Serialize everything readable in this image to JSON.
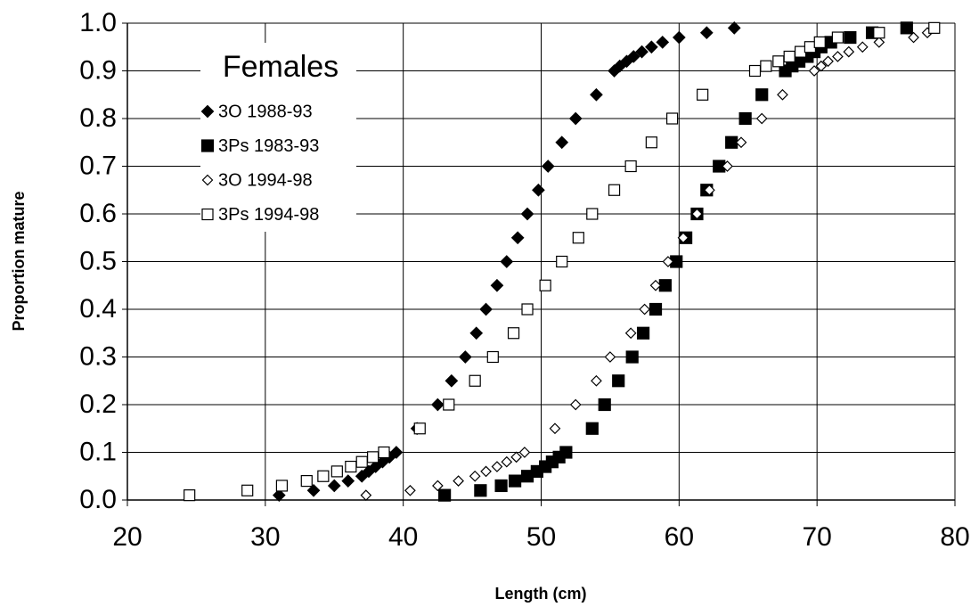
{
  "chart_data": {
    "type": "scatter",
    "xlabel": "Length (cm)",
    "ylabel": "Proportion mature",
    "legend_title": "Females",
    "legend": "upper left",
    "xlim": [
      20,
      80
    ],
    "xticks": [
      20,
      30,
      40,
      50,
      60,
      70,
      80
    ],
    "ylim": [
      0,
      1
    ],
    "yticks": [
      {
        "value": 0,
        "label": "0.0"
      },
      0.1,
      0.2,
      0.3,
      0.4,
      0.5,
      0.6,
      0.7,
      0.8,
      0.9,
      {
        "value": 1,
        "label": "1.0"
      }
    ],
    "grid": true,
    "series": [
      {
        "name": "3O 1988-93",
        "color": "#000000",
        "marker": "diamond",
        "filled": true,
        "x": [
          31,
          33.5,
          35,
          36,
          37,
          37.5,
          38,
          38.5,
          39,
          39.5,
          41,
          42.5,
          43.5,
          44.5,
          45.3,
          46,
          46.8,
          47.5,
          48.3,
          49,
          49.8,
          50.5,
          51.5,
          52.5,
          54,
          55.3,
          55.7,
          56.2,
          56.7,
          57.3,
          58,
          58.8,
          60,
          62,
          64
        ],
        "values": [
          0.01,
          0.02,
          0.03,
          0.04,
          0.05,
          0.06,
          0.07,
          0.08,
          0.09,
          0.1,
          0.15,
          0.2,
          0.25,
          0.3,
          0.35,
          0.4,
          0.45,
          0.5,
          0.55,
          0.6,
          0.65,
          0.7,
          0.75,
          0.8,
          0.85,
          0.9,
          0.91,
          0.92,
          0.93,
          0.94,
          0.95,
          0.96,
          0.97,
          0.98,
          0.99
        ]
      },
      {
        "name": "3Ps 1983-93",
        "color": "#000000",
        "marker": "square",
        "filled": true,
        "x": [
          43,
          45.6,
          47.1,
          48.1,
          49,
          49.7,
          50.3,
          50.8,
          51.3,
          51.8,
          53.7,
          54.6,
          55.6,
          56.6,
          57.4,
          58.3,
          59,
          59.8,
          60.5,
          61.3,
          62,
          62.9,
          63.8,
          64.8,
          66,
          67.7,
          68.2,
          68.7,
          69.3,
          69.8,
          70.3,
          71,
          72.4,
          74,
          76.5
        ],
        "values": [
          0.01,
          0.02,
          0.03,
          0.04,
          0.05,
          0.06,
          0.07,
          0.08,
          0.09,
          0.1,
          0.15,
          0.2,
          0.25,
          0.3,
          0.35,
          0.4,
          0.45,
          0.5,
          0.55,
          0.6,
          0.65,
          0.7,
          0.75,
          0.8,
          0.85,
          0.9,
          0.91,
          0.92,
          0.93,
          0.94,
          0.95,
          0.96,
          0.97,
          0.98,
          0.99
        ]
      },
      {
        "name": "3O 1994-98",
        "color": "#000000",
        "marker": "diamond",
        "filled": false,
        "x": [
          37.3,
          40.5,
          42.5,
          44,
          45.2,
          46,
          46.8,
          47.5,
          48.2,
          48.8,
          51,
          52.5,
          54,
          55,
          56.5,
          57.5,
          58.3,
          59.2,
          60.3,
          61.3,
          62.2,
          63.5,
          64.5,
          66,
          67.5,
          69.8,
          70.3,
          70.8,
          71.5,
          72.3,
          73.3,
          74.5,
          77,
          78
        ],
        "values": [
          0.01,
          0.02,
          0.03,
          0.04,
          0.05,
          0.06,
          0.07,
          0.08,
          0.09,
          0.1,
          0.15,
          0.2,
          0.25,
          0.3,
          0.35,
          0.4,
          0.45,
          0.5,
          0.55,
          0.6,
          0.65,
          0.7,
          0.75,
          0.8,
          0.85,
          0.9,
          0.91,
          0.92,
          0.93,
          0.94,
          0.95,
          0.96,
          0.97,
          0.98
        ]
      },
      {
        "name": "3Ps 1994-98",
        "color": "#000000",
        "marker": "square",
        "filled": false,
        "x": [
          24.5,
          28.7,
          31.2,
          33,
          34.2,
          35.2,
          36.2,
          37,
          37.8,
          38.6,
          41.2,
          43.3,
          45.2,
          46.5,
          48,
          49,
          50.3,
          51.5,
          52.7,
          53.7,
          55.3,
          56.5,
          58,
          59.5,
          61.7,
          65.5,
          66.3,
          67.2,
          68,
          68.8,
          69.5,
          70.2,
          71.5,
          74.5,
          78.5
        ],
        "values": [
          0.01,
          0.02,
          0.03,
          0.04,
          0.05,
          0.06,
          0.07,
          0.08,
          0.09,
          0.1,
          0.15,
          0.2,
          0.25,
          0.3,
          0.35,
          0.4,
          0.45,
          0.5,
          0.55,
          0.6,
          0.65,
          0.7,
          0.75,
          0.8,
          0.85,
          0.9,
          0.91,
          0.92,
          0.93,
          0.94,
          0.95,
          0.96,
          0.97,
          0.98,
          0.99
        ]
      }
    ]
  }
}
